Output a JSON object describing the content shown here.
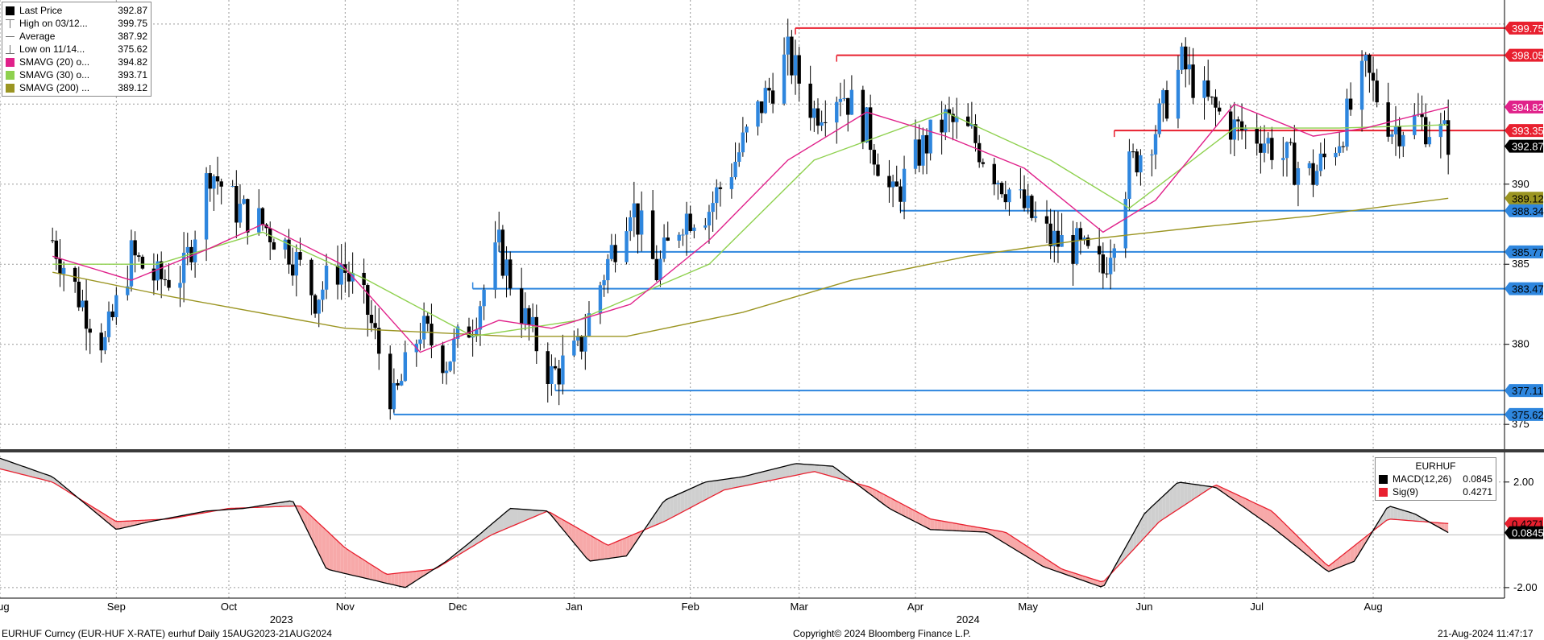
{
  "chart_data": {
    "type": "candlestick",
    "security": "EURHUF Curncy (EUR-HUF X-RATE) eurhuf",
    "title": "EURHUF Curncy (EUR-HUF X-RATE) eurhuf  Daily 15AUG2023-21AUG2024",
    "period": "Daily 15AUG2023-21AUG2024",
    "copyright": "Copyright© 2024 Bloomberg Finance L.P.",
    "timestamp": "21-Aug-2024 11:47:17",
    "x_months": [
      {
        "label": "Aug",
        "date": "2023-08-01"
      },
      {
        "label": "Sep",
        "date": "2023-09-01"
      },
      {
        "label": "Oct",
        "date": "2023-10-01"
      },
      {
        "label": "Nov",
        "date": "2023-11-01"
      },
      {
        "label": "Dec",
        "date": "2023-12-01"
      },
      {
        "label": "Jan",
        "date": "2024-01-01"
      },
      {
        "label": "Feb",
        "date": "2024-02-01"
      },
      {
        "label": "Mar",
        "date": "2024-03-01"
      },
      {
        "label": "Apr",
        "date": "2024-04-01"
      },
      {
        "label": "May",
        "date": "2024-05-01"
      },
      {
        "label": "Jun",
        "date": "2024-06-01"
      },
      {
        "label": "Jul",
        "date": "2024-07-01"
      },
      {
        "label": "Aug",
        "date": "2024-08-01"
      }
    ],
    "x_years": [
      {
        "label": "2023",
        "date": "2023-10-15"
      },
      {
        "label": "2024",
        "date": "2024-04-15"
      }
    ],
    "x_range": [
      "2023-08-01",
      "2024-09-05"
    ],
    "price_panel": {
      "ylim": [
        373.5,
        401.5
      ],
      "yticks": [
        375,
        380,
        385,
        390
      ],
      "series_closes": [
        {
          "date": "2023-08-15",
          "close": 386.5
        },
        {
          "date": "2023-08-22",
          "close": 383.0
        },
        {
          "date": "2023-08-29",
          "close": 380.0
        },
        {
          "date": "2023-09-05",
          "close": 385.5
        },
        {
          "date": "2023-09-12",
          "close": 384.0
        },
        {
          "date": "2023-09-19",
          "close": 384.5
        },
        {
          "date": "2023-09-26",
          "close": 391.0
        },
        {
          "date": "2023-10-03",
          "close": 388.5
        },
        {
          "date": "2023-10-10",
          "close": 387.5
        },
        {
          "date": "2023-10-17",
          "close": 386.0
        },
        {
          "date": "2023-10-24",
          "close": 383.0
        },
        {
          "date": "2023-10-31",
          "close": 385.0
        },
        {
          "date": "2023-11-07",
          "close": 382.0
        },
        {
          "date": "2023-11-14",
          "close": 376.3
        },
        {
          "date": "2023-11-21",
          "close": 381.0
        },
        {
          "date": "2023-11-28",
          "close": 379.0
        },
        {
          "date": "2023-12-05",
          "close": 381.5
        },
        {
          "date": "2023-12-12",
          "close": 386.0
        },
        {
          "date": "2023-12-19",
          "close": 381.5
        },
        {
          "date": "2023-12-26",
          "close": 378.0
        },
        {
          "date": "2024-01-02",
          "close": 379.5
        },
        {
          "date": "2024-01-09",
          "close": 384.5
        },
        {
          "date": "2024-01-16",
          "close": 389.0
        },
        {
          "date": "2024-01-23",
          "close": 384.5
        },
        {
          "date": "2024-01-30",
          "close": 388.0
        },
        {
          "date": "2024-02-06",
          "close": 388.5
        },
        {
          "date": "2024-02-13",
          "close": 391.5
        },
        {
          "date": "2024-02-20",
          "close": 395.0
        },
        {
          "date": "2024-02-27",
          "close": 398.0
        },
        {
          "date": "2024-03-05",
          "close": 394.5
        },
        {
          "date": "2024-03-12",
          "close": 396.0
        },
        {
          "date": "2024-03-19",
          "close": 393.5
        },
        {
          "date": "2024-03-26",
          "close": 389.0
        },
        {
          "date": "2024-04-02",
          "close": 392.0
        },
        {
          "date": "2024-04-09",
          "close": 394.0
        },
        {
          "date": "2024-04-16",
          "close": 393.0
        },
        {
          "date": "2024-04-23",
          "close": 390.5
        },
        {
          "date": "2024-04-30",
          "close": 388.5
        },
        {
          "date": "2024-05-07",
          "close": 386.5
        },
        {
          "date": "2024-05-14",
          "close": 386.0
        },
        {
          "date": "2024-05-21",
          "close": 384.5
        },
        {
          "date": "2024-05-28",
          "close": 391.0
        },
        {
          "date": "2024-06-04",
          "close": 393.5
        },
        {
          "date": "2024-06-11",
          "close": 397.5
        },
        {
          "date": "2024-06-18",
          "close": 395.0
        },
        {
          "date": "2024-06-25",
          "close": 393.5
        },
        {
          "date": "2024-07-02",
          "close": 393.0
        },
        {
          "date": "2024-07-09",
          "close": 391.5
        },
        {
          "date": "2024-07-16",
          "close": 390.5
        },
        {
          "date": "2024-07-23",
          "close": 393.0
        },
        {
          "date": "2024-07-30",
          "close": 397.0
        },
        {
          "date": "2024-08-06",
          "close": 393.5
        },
        {
          "date": "2024-08-13",
          "close": 394.0
        },
        {
          "date": "2024-08-21",
          "close": 392.87
        }
      ],
      "sma20": [
        {
          "date": "2023-08-15",
          "v": 385.5
        },
        {
          "date": "2023-09-05",
          "v": 384.0
        },
        {
          "date": "2023-09-26",
          "v": 386.0
        },
        {
          "date": "2023-10-10",
          "v": 387.5
        },
        {
          "date": "2023-10-31",
          "v": 385.0
        },
        {
          "date": "2023-11-21",
          "v": 379.5
        },
        {
          "date": "2023-12-12",
          "v": 381.5
        },
        {
          "date": "2023-12-26",
          "v": 381.0
        },
        {
          "date": "2024-01-16",
          "v": 382.5
        },
        {
          "date": "2024-02-06",
          "v": 386.5
        },
        {
          "date": "2024-02-27",
          "v": 391.5
        },
        {
          "date": "2024-03-19",
          "v": 394.5
        },
        {
          "date": "2024-04-09",
          "v": 393.0
        },
        {
          "date": "2024-04-30",
          "v": 391.0
        },
        {
          "date": "2024-05-21",
          "v": 387.0
        },
        {
          "date": "2024-06-04",
          "v": 389.0
        },
        {
          "date": "2024-06-25",
          "v": 395.0
        },
        {
          "date": "2024-07-16",
          "v": 393.0
        },
        {
          "date": "2024-07-30",
          "v": 393.5
        },
        {
          "date": "2024-08-21",
          "v": 394.82
        }
      ],
      "sma30": [
        {
          "date": "2023-08-15",
          "v": 385.0
        },
        {
          "date": "2023-09-12",
          "v": 385.0
        },
        {
          "date": "2023-10-10",
          "v": 387.0
        },
        {
          "date": "2023-11-07",
          "v": 384.0
        },
        {
          "date": "2023-12-05",
          "v": 380.5
        },
        {
          "date": "2024-01-02",
          "v": 381.5
        },
        {
          "date": "2024-02-06",
          "v": 385.0
        },
        {
          "date": "2024-03-05",
          "v": 391.5
        },
        {
          "date": "2024-04-09",
          "v": 394.5
        },
        {
          "date": "2024-05-07",
          "v": 391.5
        },
        {
          "date": "2024-05-28",
          "v": 388.5
        },
        {
          "date": "2024-06-25",
          "v": 393.5
        },
        {
          "date": "2024-07-23",
          "v": 393.5
        },
        {
          "date": "2024-08-21",
          "v": 393.71
        }
      ],
      "sma200": [
        {
          "date": "2023-08-15",
          "v": 384.5
        },
        {
          "date": "2023-09-15",
          "v": 383.0
        },
        {
          "date": "2023-11-01",
          "v": 381.0
        },
        {
          "date": "2023-12-15",
          "v": 380.5
        },
        {
          "date": "2024-01-15",
          "v": 380.5
        },
        {
          "date": "2024-02-15",
          "v": 382.0
        },
        {
          "date": "2024-03-15",
          "v": 384.0
        },
        {
          "date": "2024-04-15",
          "v": 385.5
        },
        {
          "date": "2024-05-15",
          "v": 386.5
        },
        {
          "date": "2024-06-15",
          "v": 387.3
        },
        {
          "date": "2024-07-15",
          "v": 388.0
        },
        {
          "date": "2024-08-21",
          "v": 389.12
        }
      ],
      "resistance_lines": [
        {
          "value": 399.75,
          "label": "399.75",
          "start": "2024-02-29"
        },
        {
          "value": 398.05,
          "label": "398.05",
          "start": "2024-03-11"
        },
        {
          "value": 393.35,
          "label": "393.35",
          "start": "2024-05-24"
        }
      ],
      "support_lines": [
        {
          "value": 388.34,
          "label": "388.34",
          "start": "2024-03-28"
        },
        {
          "value": 385.77,
          "label": "385.77",
          "start": "2023-12-12"
        },
        {
          "value": 383.47,
          "label": "383.47",
          "start": "2023-12-05"
        },
        {
          "value": 377.11,
          "label": "377.11",
          "start": "2023-12-27"
        },
        {
          "value": 375.62,
          "label": "375.62",
          "start": "2023-11-14"
        }
      ],
      "value_badges": [
        {
          "label": "399.75",
          "value": 399.75,
          "bg": "#e8202f",
          "fg": "#ffffff"
        },
        {
          "label": "398.05",
          "value": 398.05,
          "bg": "#e8202f",
          "fg": "#ffffff"
        },
        {
          "label": "394.82",
          "value": 394.82,
          "bg": "#e0218a",
          "fg": "#ffffff"
        },
        {
          "label": "393.35",
          "value": 393.35,
          "bg": "#e8202f",
          "fg": "#ffffff"
        },
        {
          "label": "392.87",
          "value": 392.87,
          "bg": "#000000",
          "fg": "#ffffff"
        },
        {
          "label": "389.12",
          "value": 389.12,
          "bg": "#9b9522",
          "fg": "#000000"
        },
        {
          "label": "388.34",
          "value": 388.34,
          "bg": "#2e86de",
          "fg": "#000000"
        },
        {
          "label": "385.77",
          "value": 385.77,
          "bg": "#2e86de",
          "fg": "#000000"
        },
        {
          "label": "383.47",
          "value": 383.47,
          "bg": "#2e86de",
          "fg": "#000000"
        },
        {
          "label": "377.11",
          "value": 377.11,
          "bg": "#2e86de",
          "fg": "#000000"
        },
        {
          "label": "375.62",
          "value": 375.62,
          "bg": "#2e86de",
          "fg": "#000000"
        }
      ]
    },
    "macd_panel": {
      "title": "EURHUF",
      "ylim": [
        -2.4,
        3.0
      ],
      "yticks": [
        {
          "value": 2.0,
          "label": "2.00"
        },
        {
          "value": -2.0,
          "label": "-2.00"
        }
      ],
      "macd": [
        {
          "date": "2023-08-01",
          "v": 2.9
        },
        {
          "date": "2023-08-15",
          "v": 2.2
        },
        {
          "date": "2023-09-01",
          "v": 0.2
        },
        {
          "date": "2023-09-10",
          "v": 0.5
        },
        {
          "date": "2023-09-25",
          "v": 0.9
        },
        {
          "date": "2023-10-05",
          "v": 1.0
        },
        {
          "date": "2023-10-18",
          "v": 1.3
        },
        {
          "date": "2023-10-27",
          "v": -1.3
        },
        {
          "date": "2023-11-05",
          "v": -1.6
        },
        {
          "date": "2023-11-17",
          "v": -2.0
        },
        {
          "date": "2023-11-28",
          "v": -1.0
        },
        {
          "date": "2023-12-05",
          "v": -0.2
        },
        {
          "date": "2023-12-15",
          "v": 1.0
        },
        {
          "date": "2023-12-25",
          "v": 0.9
        },
        {
          "date": "2024-01-05",
          "v": -1.0
        },
        {
          "date": "2024-01-15",
          "v": -0.8
        },
        {
          "date": "2024-01-25",
          "v": 1.3
        },
        {
          "date": "2024-02-05",
          "v": 2.0
        },
        {
          "date": "2024-02-15",
          "v": 2.2
        },
        {
          "date": "2024-02-29",
          "v": 2.7
        },
        {
          "date": "2024-03-10",
          "v": 2.6
        },
        {
          "date": "2024-03-25",
          "v": 1.0
        },
        {
          "date": "2024-04-05",
          "v": 0.2
        },
        {
          "date": "2024-04-20",
          "v": 0.1
        },
        {
          "date": "2024-05-05",
          "v": -1.2
        },
        {
          "date": "2024-05-21",
          "v": -2.0
        },
        {
          "date": "2024-06-01",
          "v": 0.8
        },
        {
          "date": "2024-06-10",
          "v": 2.0
        },
        {
          "date": "2024-06-20",
          "v": 1.8
        },
        {
          "date": "2024-07-05",
          "v": 0.3
        },
        {
          "date": "2024-07-20",
          "v": -1.4
        },
        {
          "date": "2024-07-27",
          "v": -1.0
        },
        {
          "date": "2024-08-05",
          "v": 1.1
        },
        {
          "date": "2024-08-12",
          "v": 0.8
        },
        {
          "date": "2024-08-21",
          "v": 0.0845
        }
      ],
      "signal": [
        {
          "date": "2023-08-01",
          "v": 2.5
        },
        {
          "date": "2023-08-15",
          "v": 2.0
        },
        {
          "date": "2023-09-01",
          "v": 0.5
        },
        {
          "date": "2023-09-15",
          "v": 0.6
        },
        {
          "date": "2023-10-01",
          "v": 1.0
        },
        {
          "date": "2023-10-20",
          "v": 1.1
        },
        {
          "date": "2023-11-01",
          "v": -0.5
        },
        {
          "date": "2023-11-12",
          "v": -1.5
        },
        {
          "date": "2023-11-25",
          "v": -1.3
        },
        {
          "date": "2023-12-10",
          "v": 0.0
        },
        {
          "date": "2023-12-25",
          "v": 0.9
        },
        {
          "date": "2024-01-10",
          "v": -0.4
        },
        {
          "date": "2024-01-25",
          "v": 0.5
        },
        {
          "date": "2024-02-10",
          "v": 1.7
        },
        {
          "date": "2024-03-05",
          "v": 2.4
        },
        {
          "date": "2024-03-20",
          "v": 1.8
        },
        {
          "date": "2024-04-05",
          "v": 0.6
        },
        {
          "date": "2024-04-25",
          "v": 0.1
        },
        {
          "date": "2024-05-10",
          "v": -1.3
        },
        {
          "date": "2024-05-21",
          "v": -1.8
        },
        {
          "date": "2024-06-05",
          "v": 0.5
        },
        {
          "date": "2024-06-20",
          "v": 1.9
        },
        {
          "date": "2024-07-05",
          "v": 0.9
        },
        {
          "date": "2024-07-20",
          "v": -1.2
        },
        {
          "date": "2024-08-05",
          "v": 0.6
        },
        {
          "date": "2024-08-21",
          "v": 0.4271
        }
      ],
      "badges": [
        {
          "label": "0.4271",
          "value": 0.4271,
          "bg": "#e8202f",
          "fg": "#000000"
        },
        {
          "label": "0.0845",
          "value": 0.0845,
          "bg": "#000000",
          "fg": "#ffffff"
        }
      ]
    }
  },
  "legend_main": [
    {
      "swatch": "black-square",
      "color": "#000000",
      "name": "Last Price",
      "value": "392.87"
    },
    {
      "swatch": "high-icon",
      "color": "#707070",
      "name": "High on 03/12...",
      "value": "399.75"
    },
    {
      "swatch": "average-icon",
      "color": "#707070",
      "name": "Average",
      "value": "387.92"
    },
    {
      "swatch": "low-icon",
      "color": "#707070",
      "name": "Low on 11/14...",
      "value": "375.62"
    },
    {
      "swatch": "pink-square",
      "color": "#e0218a",
      "name": "SMAVG (20)   o...",
      "value": "394.82"
    },
    {
      "swatch": "green-square",
      "color": "#8fd14f",
      "name": "SMAVG (30)   o...",
      "value": "393.71"
    },
    {
      "swatch": "olive-square",
      "color": "#9b9522",
      "name": "SMAVG (200)   ...",
      "value": "389.12"
    }
  ],
  "legend_macd": {
    "title": "EURHUF",
    "rows": [
      {
        "swatch": "black-square",
        "color": "#000000",
        "name": "MACD(12,26)",
        "value": "0.0845"
      },
      {
        "swatch": "red-square",
        "color": "#e8202f",
        "name": "Sig(9)",
        "value": "0.4271"
      }
    ]
  },
  "colors": {
    "candle_up": "#2e86de",
    "candle_down": "#000000",
    "sma20": "#e0218a",
    "sma30": "#8fd14f",
    "sma200": "#9b9522",
    "resistance": "#e8202f",
    "support": "#2e86de",
    "macd_fill_up": "#cfcfcf",
    "macd_fill_down": "#f7a9a9"
  }
}
